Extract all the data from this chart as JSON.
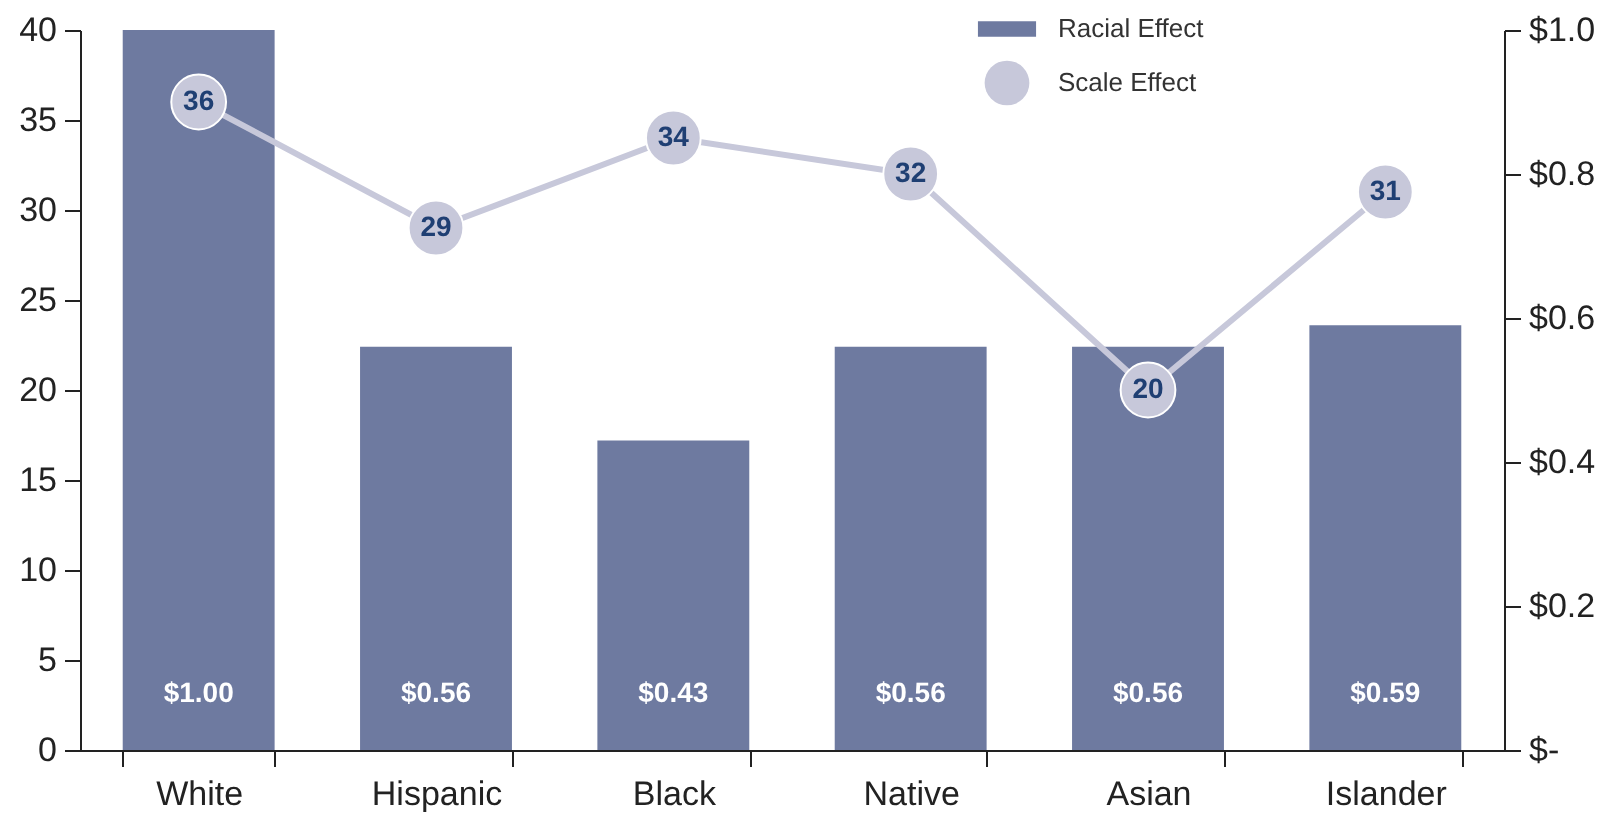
{
  "chart_data": {
    "type": "bar",
    "categories": [
      "White",
      "Hispanic",
      "Black",
      "Native",
      "Asian",
      "Islander"
    ],
    "series": [
      {
        "name": "Racial Effect",
        "axis": "y2",
        "color": "#6e7aa0",
        "values": [
          1.0,
          0.56,
          0.43,
          0.56,
          0.56,
          0.59
        ],
        "value_labels": [
          "$1.00",
          "$0.56",
          "$0.43",
          "$0.56",
          "$0.56",
          "$0.59"
        ]
      },
      {
        "name": "Scale Effect",
        "type": "line",
        "color": "#c7c8da",
        "values": [
          36,
          29,
          34,
          32,
          20,
          31
        ]
      }
    ],
    "data_labels": true,
    "marker": "circle",
    "legend": "top right",
    "grid": false,
    "ylim": [
      0,
      40
    ],
    "yticks": [
      0,
      5,
      10,
      15,
      20,
      25,
      30,
      35,
      40
    ],
    "y2lim": [
      0,
      1.0
    ],
    "y2ticks": [
      {
        "value": 0,
        "label": "$-"
      },
      {
        "value": 0.2,
        "label": "$0.2"
      },
      {
        "value": 0.4,
        "label": "$0.4"
      },
      {
        "value": 0.6,
        "label": "$0.6"
      },
      {
        "value": 0.8,
        "label": "$0.8"
      },
      {
        "value": 1.0,
        "label": "$1.0"
      }
    ]
  }
}
